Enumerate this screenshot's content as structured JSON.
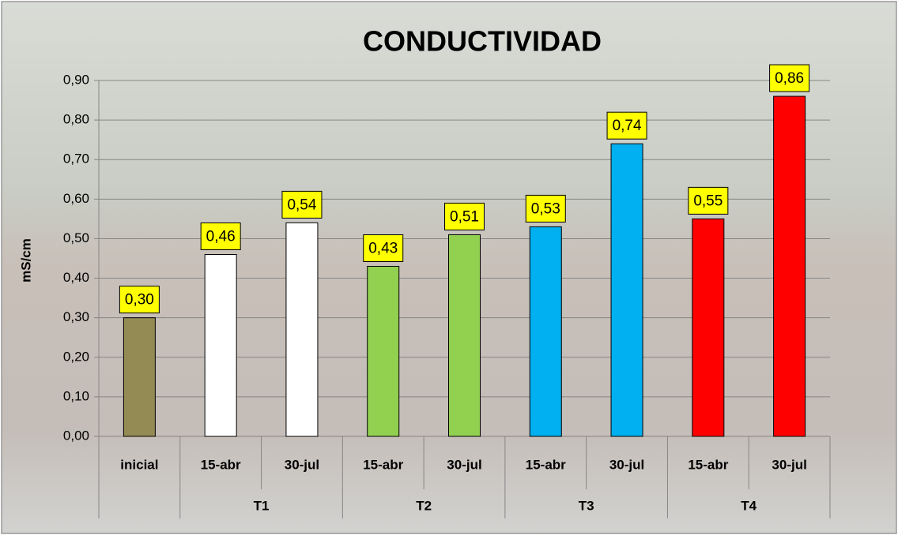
{
  "chart_data": {
    "type": "bar",
    "title": "CONDUCTIVIDAD",
    "y_label": "mS/cm",
    "categories": [
      "inicial",
      "15-abr",
      "30-jul",
      "15-abr",
      "30-jul",
      "15-abr",
      "30-jul",
      "15-abr",
      "30-jul"
    ],
    "group_labels": [
      null,
      "T1",
      "T1",
      "T2",
      "T2",
      "T3",
      "T3",
      "T4",
      "T4"
    ],
    "values": [
      0.3,
      0.46,
      0.54,
      0.43,
      0.51,
      0.53,
      0.74,
      0.55,
      0.86
    ],
    "value_labels": [
      "0,30",
      "0,46",
      "0,54",
      "0,43",
      "0,51",
      "0,53",
      "0,74",
      "0,55",
      "0,86"
    ],
    "colors": [
      "#948a54",
      "#ffffff",
      "#ffffff",
      "#92d050",
      "#92d050",
      "#00b0f0",
      "#00b0f0",
      "#ff0000",
      "#ff0000"
    ],
    "ylim": [
      0,
      0.9
    ],
    "yticks": [
      {
        "value": 0,
        "label": "0,00"
      },
      {
        "value": 0.1,
        "label": "0,10"
      },
      {
        "value": 0.2,
        "label": "0,20"
      },
      {
        "value": 0.3,
        "label": "0,30"
      },
      {
        "value": 0.4,
        "label": "0,40"
      },
      {
        "value": 0.5,
        "label": "0,50"
      },
      {
        "value": 0.6,
        "label": "0,60"
      },
      {
        "value": 0.7,
        "label": "0,70"
      },
      {
        "value": 0.8,
        "label": "0,80"
      },
      {
        "value": 0.9,
        "label": "0,90"
      }
    ],
    "grid": true
  }
}
